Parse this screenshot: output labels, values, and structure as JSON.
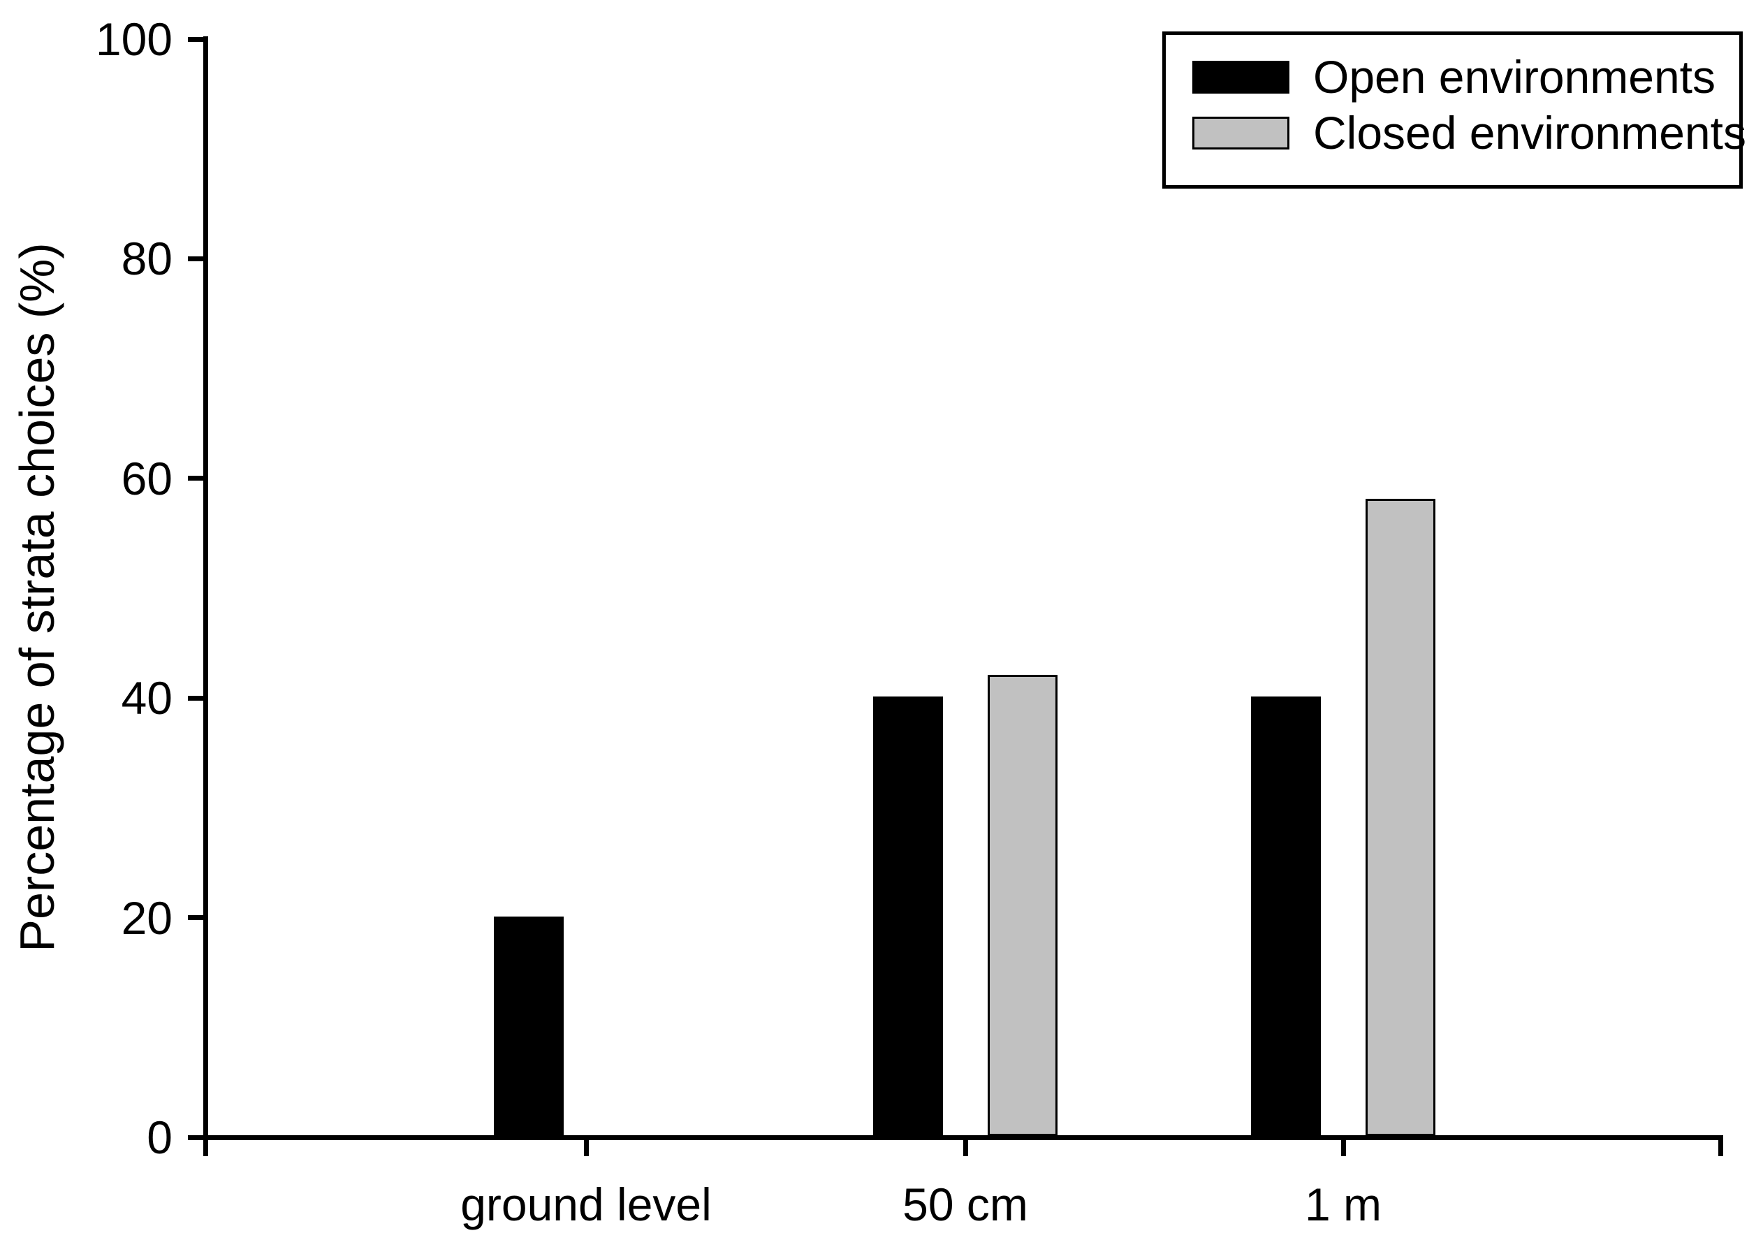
{
  "page": {
    "background": "#ffffff"
  },
  "chart_data": {
    "type": "bar",
    "title": "",
    "xlabel": "",
    "ylabel": "Percentage of strata choices (%)",
    "categories": [
      "ground level",
      "50 cm",
      "1 m"
    ],
    "series": [
      {
        "name": "Open environments",
        "color": "#000000",
        "values": [
          20,
          40,
          40
        ]
      },
      {
        "name": "Closed environments",
        "color": "#c1c1c1",
        "values": [
          0,
          42,
          58
        ]
      }
    ],
    "ylim": [
      0,
      100
    ],
    "yticks": [
      0,
      20,
      40,
      60,
      80,
      100
    ],
    "grid": false,
    "legend": {
      "position": "top-right",
      "entries": [
        "Open environments",
        "Closed environments"
      ]
    },
    "axis_color": "#000000",
    "bar_outline_color": "#000000",
    "zero_value_bars_hidden": true
  }
}
